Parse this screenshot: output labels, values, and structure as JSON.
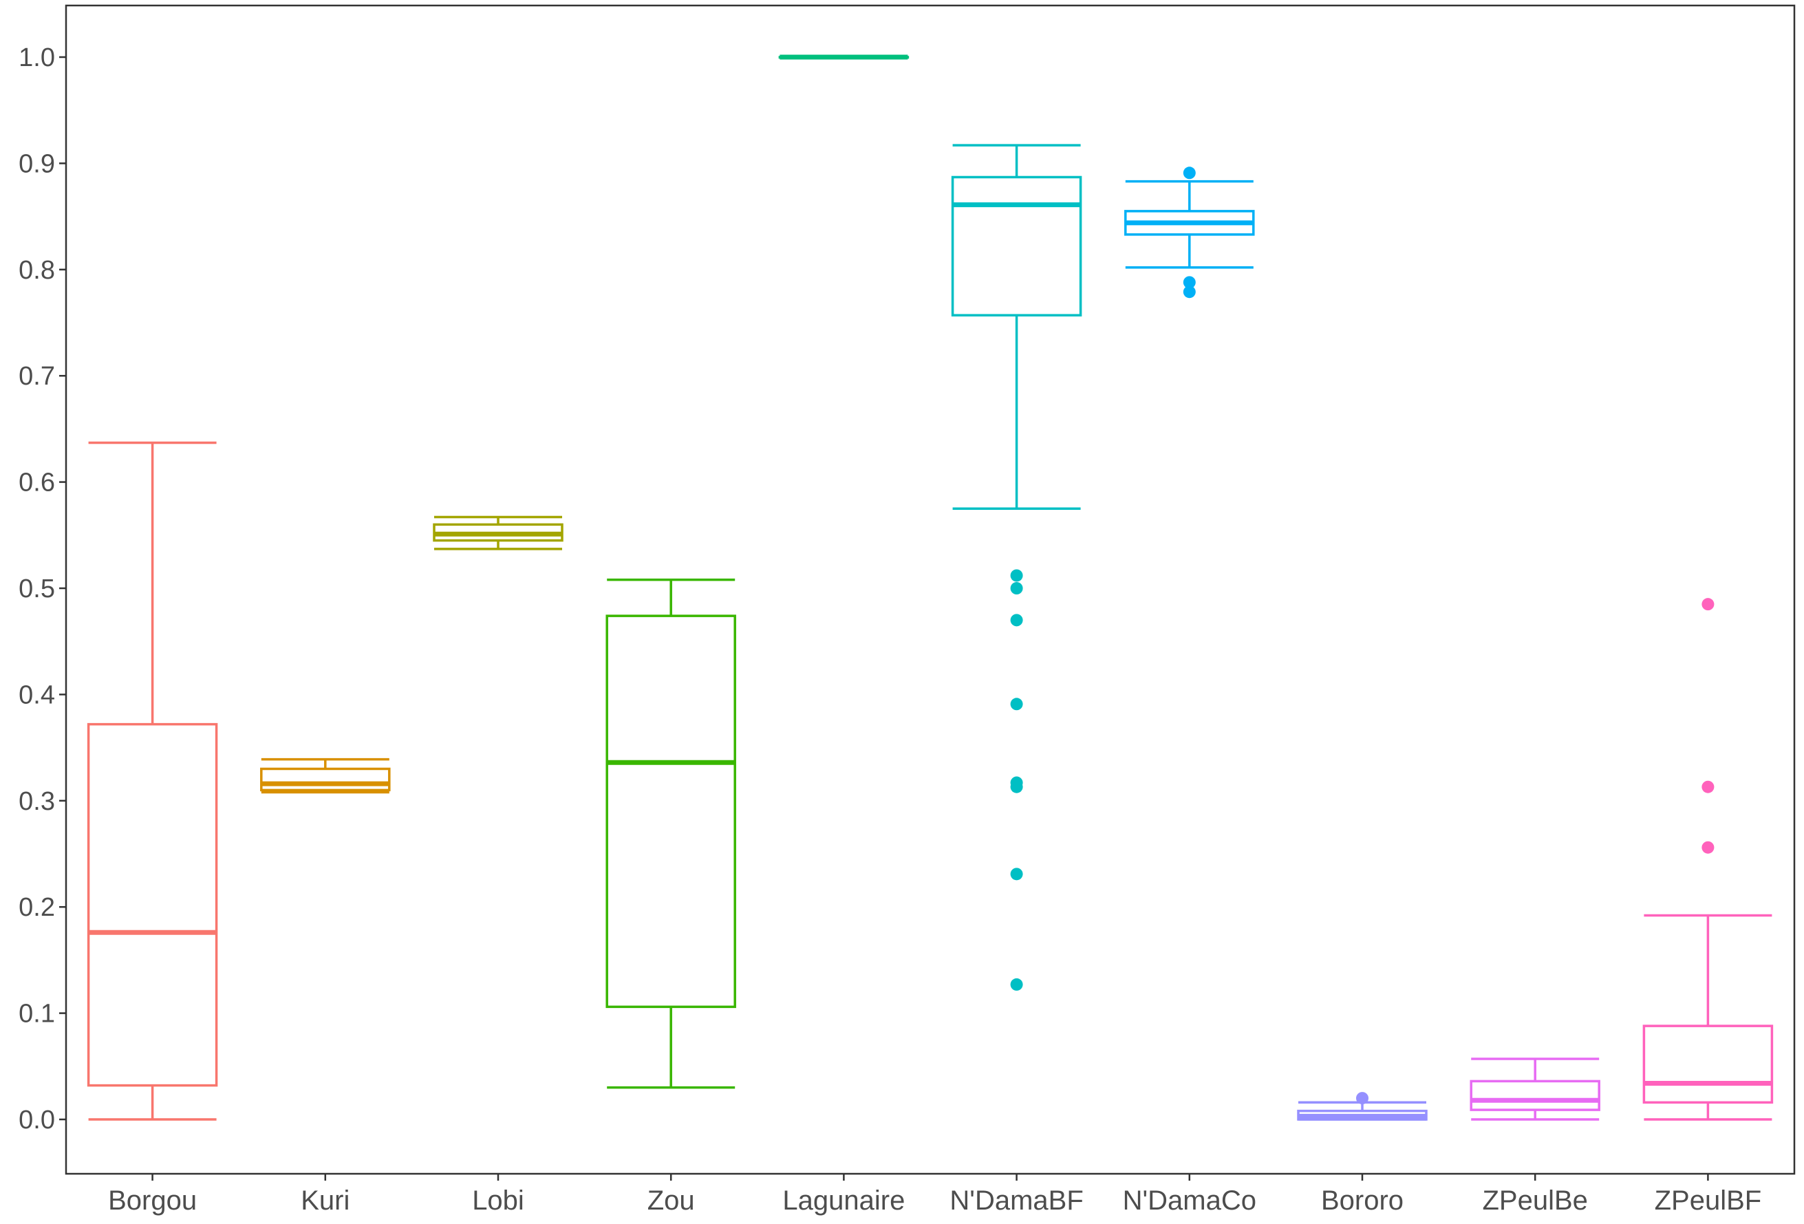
{
  "chart_data": {
    "type": "boxplot",
    "title": "",
    "xlabel": "",
    "ylabel": "",
    "ylim": [
      -0.05,
      1.05
    ],
    "y_ticks": [
      "0.0",
      "0.1",
      "0.2",
      "0.3",
      "0.4",
      "0.5",
      "0.6",
      "0.7",
      "0.8",
      "0.9",
      "1.0"
    ],
    "grid": false,
    "legend": "none",
    "categories": [
      "Borgou",
      "Kuri",
      "Lobi",
      "Zou",
      "Lagunaire",
      "N'DamaBF",
      "N'DamaCo",
      "Bororo",
      "ZPeulBe",
      "ZPeulBF"
    ],
    "series": [
      {
        "category": "Borgou",
        "color": "#F8766D",
        "whisker_low": 0.0,
        "q1": 0.032,
        "median": 0.176,
        "q3": 0.372,
        "whisker_high": 0.637,
        "outliers": []
      },
      {
        "category": "Kuri",
        "color": "#D89000",
        "whisker_low": 0.308,
        "q1": 0.31,
        "median": 0.316,
        "q3": 0.33,
        "whisker_high": 0.339,
        "outliers": []
      },
      {
        "category": "Lobi",
        "color": "#A3A500",
        "whisker_low": 0.537,
        "q1": 0.545,
        "median": 0.551,
        "q3": 0.56,
        "whisker_high": 0.567,
        "outliers": []
      },
      {
        "category": "Zou",
        "color": "#39B600",
        "whisker_low": 0.03,
        "q1": 0.106,
        "median": 0.336,
        "q3": 0.474,
        "whisker_high": 0.508,
        "outliers": []
      },
      {
        "category": "Lagunaire",
        "color": "#00BF7D",
        "whisker_low": 1.0,
        "q1": 1.0,
        "median": 1.0,
        "q3": 1.0,
        "whisker_high": 1.0,
        "outliers": []
      },
      {
        "category": "N'DamaBF",
        "color": "#00BFC4",
        "whisker_low": 0.575,
        "q1": 0.757,
        "median": 0.861,
        "q3": 0.887,
        "whisker_high": 0.917,
        "outliers": [
          0.512,
          0.5,
          0.47,
          0.391,
          0.317,
          0.313,
          0.231,
          0.127
        ]
      },
      {
        "category": "N'DamaCo",
        "color": "#00B0F6",
        "whisker_low": 0.802,
        "q1": 0.833,
        "median": 0.844,
        "q3": 0.855,
        "whisker_high": 0.883,
        "outliers": [
          0.891,
          0.788,
          0.779
        ]
      },
      {
        "category": "Bororo",
        "color": "#9590FF",
        "whisker_low": 0.0,
        "q1": 0.0,
        "median": 0.003,
        "q3": 0.008,
        "whisker_high": 0.016,
        "outliers": [
          0.02
        ]
      },
      {
        "category": "ZPeulBe",
        "color": "#E76BF3",
        "whisker_low": 0.0,
        "q1": 0.009,
        "median": 0.018,
        "q3": 0.036,
        "whisker_high": 0.057,
        "outliers": []
      },
      {
        "category": "ZPeulBF",
        "color": "#FF62BC",
        "whisker_low": 0.0,
        "q1": 0.016,
        "median": 0.034,
        "q3": 0.088,
        "whisker_high": 0.192,
        "outliers": [
          0.485,
          0.313,
          0.256
        ]
      }
    ]
  }
}
